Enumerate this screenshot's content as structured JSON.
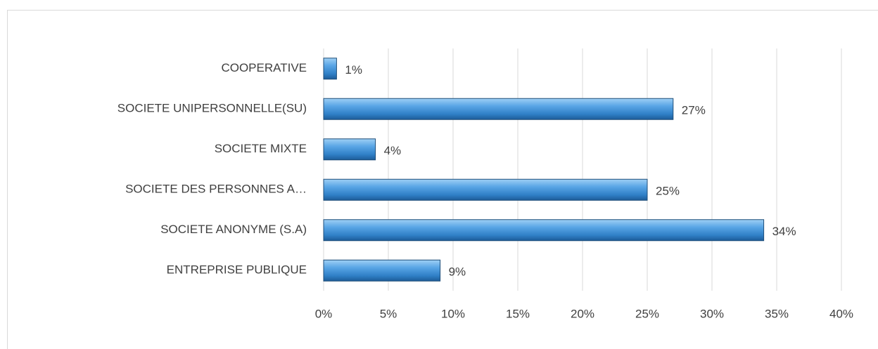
{
  "chart_data": {
    "type": "hbar",
    "categories": [
      "COOPERATIVE",
      "SOCIETE UNIPERSONNELLE(SU)",
      "SOCIETE MIXTE",
      "SOCIETE DES PERSONNES A…",
      "SOCIETE ANONYME (S.A)",
      "ENTREPRISE PUBLIQUE"
    ],
    "values": [
      1,
      27,
      4,
      25,
      34,
      9
    ],
    "value_labels": [
      "1%",
      "27%",
      "4%",
      "25%",
      "34%",
      "9%"
    ],
    "color": "#4a90d0",
    "xlim": [
      0,
      40
    ],
    "xticks": [
      {
        "value": 0,
        "label": "0%"
      },
      {
        "value": 5,
        "label": "5%"
      },
      {
        "value": 10,
        "label": "10%"
      },
      {
        "value": 15,
        "label": "15%"
      },
      {
        "value": 20,
        "label": "20%"
      },
      {
        "value": 25,
        "label": "25%"
      },
      {
        "value": 30,
        "label": "30%"
      },
      {
        "value": 35,
        "label": "35%"
      },
      {
        "value": 40,
        "label": "40%"
      }
    ],
    "grid": true
  }
}
